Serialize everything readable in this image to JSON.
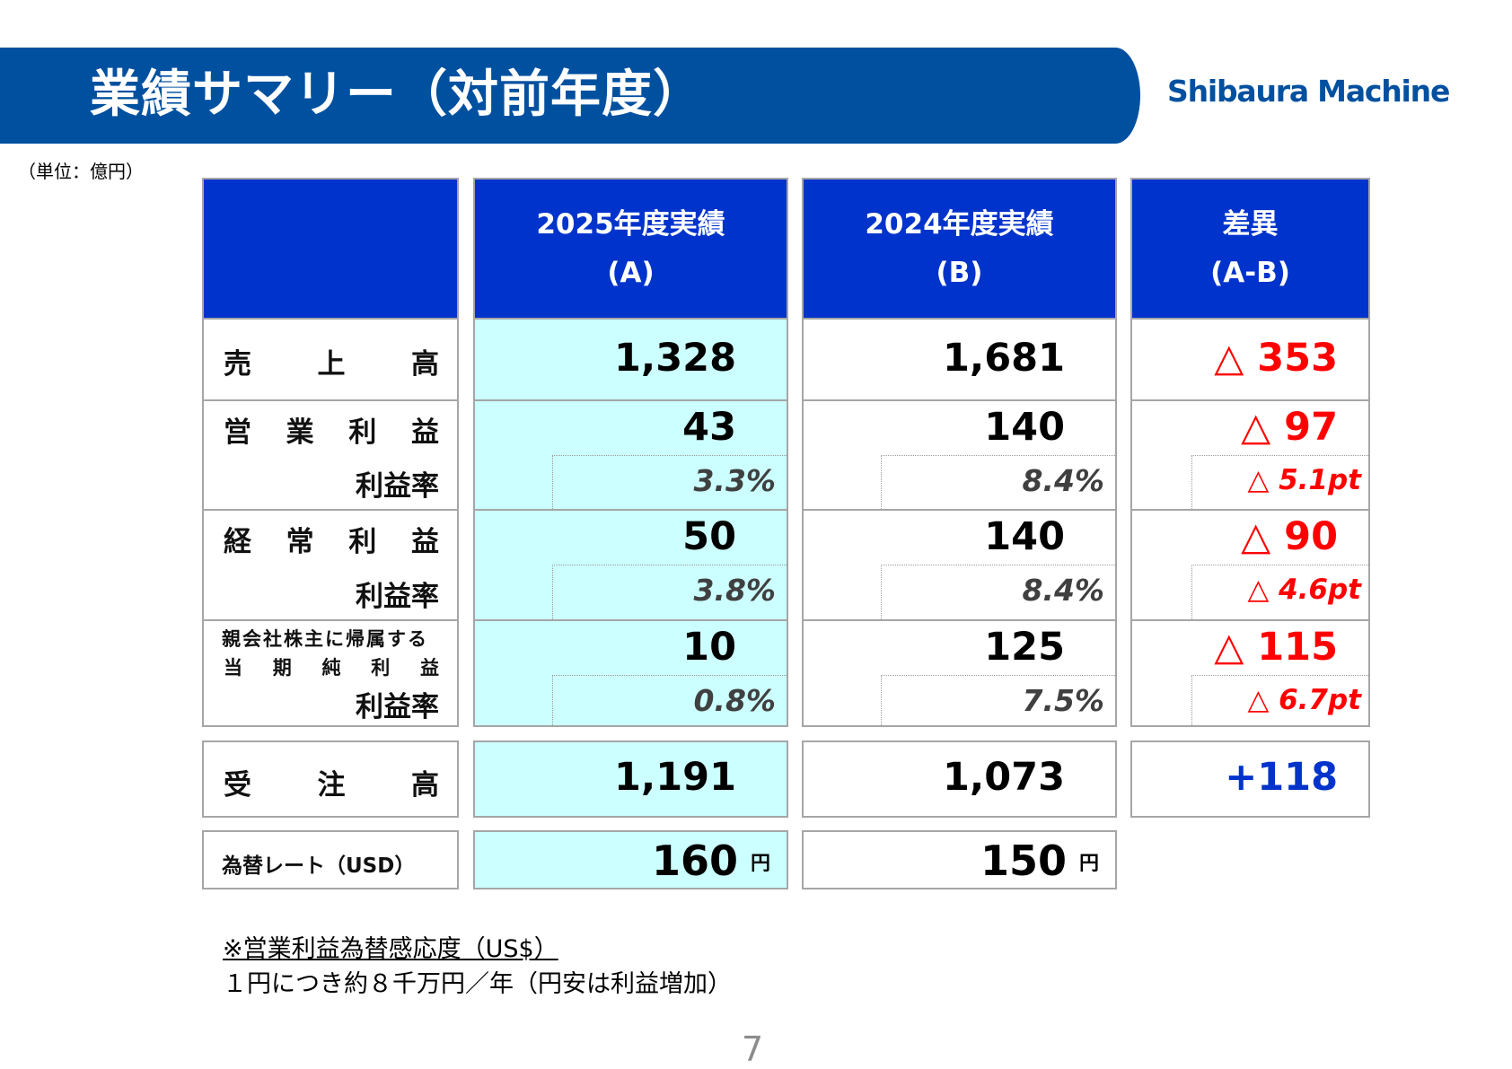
{
  "header": {
    "title": "業績サマリー（対前年度）",
    "logo_text": "Shibaura Machine",
    "brand_color": "#0050a0"
  },
  "unit_note": "（単位：億円）",
  "columns": {
    "a": {
      "line1": "2025年度実績",
      "line2": "(A)"
    },
    "b": {
      "line1": "2024年度実績",
      "line2": "(B)"
    },
    "diff": {
      "line1": "差異",
      "line2": "(A-B)"
    }
  },
  "labels": {
    "sales": [
      "売",
      "上",
      "高"
    ],
    "operating": [
      "営",
      "業",
      "利",
      "益"
    ],
    "ordinary": [
      "経",
      "常",
      "利",
      "益"
    ],
    "net_line1": "親会社株主に帰属する",
    "net_line2": [
      "当",
      "期",
      "純",
      "利",
      "益"
    ],
    "margin": "利益率",
    "orders": [
      "受",
      "注",
      "高"
    ],
    "fx": "為替レート（USD）"
  },
  "values": {
    "sales": {
      "a": "1,328",
      "b": "1,681",
      "diff": "△ 353"
    },
    "operating": {
      "a": "43",
      "b": "140",
      "diff": "△ 97"
    },
    "operating_margin": {
      "a": "3.3%",
      "b": "8.4%",
      "diff": "△ 5.1pt"
    },
    "ordinary": {
      "a": "50",
      "b": "140",
      "diff": "△ 90"
    },
    "ordinary_margin": {
      "a": "3.8%",
      "b": "8.4%",
      "diff": "△ 4.6pt"
    },
    "net": {
      "a": "10",
      "b": "125",
      "diff": "△ 115"
    },
    "net_margin": {
      "a": "0.8%",
      "b": "7.5%",
      "diff": "△ 6.7pt"
    },
    "orders": {
      "a": "1,191",
      "b": "1,073",
      "diff": "+118"
    },
    "fx": {
      "a": "160",
      "b": "150",
      "unit": "円"
    }
  },
  "notes": {
    "line1": "※営業利益為替感応度（US$）",
    "line2": "１円につき約８千万円／年（円安は利益増加）"
  },
  "page_number": "7"
}
